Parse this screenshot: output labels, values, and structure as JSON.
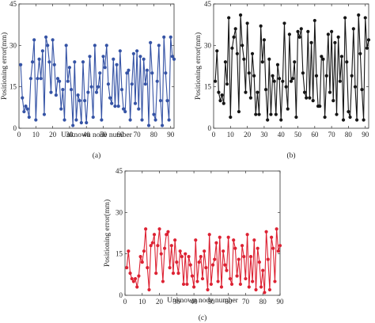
{
  "chart_data": [
    {
      "type": "line",
      "panel": "(a)",
      "xlabel": "Unknown node number",
      "ylabel": "Positioning error(mm)",
      "xlim": [
        0,
        92
      ],
      "ylim": [
        0,
        45
      ],
      "xticks": [
        0,
        10,
        20,
        30,
        40,
        50,
        60,
        70,
        80,
        90
      ],
      "yticks": [
        0,
        15,
        30,
        45
      ],
      "grid": false,
      "color": "#3553a5",
      "series": [
        {
          "x": [
            1,
            2,
            3,
            4,
            5,
            6,
            7,
            8,
            9,
            10,
            11,
            12,
            13,
            14,
            15,
            16,
            17,
            18,
            19,
            20,
            21,
            22,
            23,
            24,
            25,
            26,
            27,
            28,
            29,
            30,
            31,
            32,
            33,
            34,
            35,
            36,
            37,
            38,
            39,
            40,
            41,
            42,
            43,
            44,
            45,
            46,
            47,
            48,
            49,
            50,
            51,
            52,
            53,
            54,
            55,
            56,
            57,
            58,
            59,
            60,
            61,
            62,
            63,
            64,
            65,
            66,
            67,
            68,
            69,
            70,
            71,
            72,
            73,
            74,
            75,
            76,
            77,
            78,
            79,
            80,
            81,
            82,
            83,
            84,
            85,
            86,
            87,
            88,
            89,
            90,
            91,
            92
          ],
          "values": [
            23,
            11,
            6,
            8,
            7,
            4,
            18,
            24,
            32,
            3,
            18,
            25,
            18,
            28,
            5,
            33,
            30,
            24,
            13,
            32,
            23,
            12,
            18,
            17,
            7,
            14,
            3,
            30,
            17,
            22,
            14,
            1,
            24,
            3,
            12,
            10,
            2,
            24,
            10,
            2,
            13,
            26,
            15,
            4,
            30,
            13,
            15,
            20,
            3,
            26,
            22,
            30,
            16,
            11,
            9,
            25,
            8,
            23,
            8,
            28,
            14,
            7,
            6,
            20,
            21,
            3,
            16,
            27,
            9,
            28,
            7,
            26,
            3,
            25,
            16,
            21,
            1,
            31,
            20,
            5,
            3,
            17,
            30,
            10,
            1,
            33,
            20,
            10,
            3,
            33,
            26,
            25
          ]
        }
      ]
    },
    {
      "type": "line",
      "panel": "(b)",
      "xlabel": "",
      "ylabel": "Positioning error(mm)",
      "xlim": [
        0,
        92
      ],
      "ylim": [
        0,
        45
      ],
      "xticks": [
        0,
        10,
        20,
        30,
        40,
        50,
        60,
        70,
        80,
        90
      ],
      "yticks": [
        0,
        15,
        30,
        45
      ],
      "grid": false,
      "color": "#151515",
      "series": [
        {
          "x": [
            1,
            2,
            3,
            4,
            5,
            6,
            7,
            8,
            9,
            10,
            11,
            12,
            13,
            14,
            15,
            16,
            17,
            18,
            19,
            20,
            21,
            22,
            23,
            24,
            25,
            26,
            27,
            28,
            29,
            30,
            31,
            32,
            33,
            34,
            35,
            36,
            37,
            38,
            39,
            40,
            41,
            42,
            43,
            44,
            45,
            46,
            47,
            48,
            49,
            50,
            51,
            52,
            53,
            54,
            55,
            56,
            57,
            58,
            59,
            60,
            61,
            62,
            63,
            64,
            65,
            66,
            67,
            68,
            69,
            70,
            71,
            72,
            73,
            74,
            75,
            76,
            77,
            78,
            79,
            80,
            81,
            82,
            83,
            84,
            85,
            86,
            87,
            88,
            89,
            90,
            91,
            92
          ],
          "values": [
            17,
            28,
            13,
            10,
            12,
            9,
            24,
            16,
            40,
            4,
            29,
            33,
            36,
            27,
            6,
            41,
            30,
            25,
            13,
            38,
            20,
            11,
            27,
            19,
            5,
            13,
            5,
            37,
            24,
            32,
            14,
            3,
            25,
            5,
            19,
            17,
            5,
            23,
            18,
            3,
            17,
            38,
            15,
            7,
            34,
            17,
            18,
            24,
            4,
            35,
            33,
            36,
            20,
            13,
            11,
            35,
            11,
            31,
            10,
            39,
            19,
            8,
            8,
            26,
            25,
            4,
            19,
            34,
            13,
            35,
            10,
            31,
            5,
            33,
            17,
            26,
            3,
            40,
            24,
            6,
            4,
            19,
            36,
            15,
            3,
            41,
            27,
            14,
            3,
            40,
            29,
            32
          ]
        }
      ]
    },
    {
      "type": "line",
      "panel": "(c)",
      "xlabel": "Unknown node number",
      "ylabel": "Positioning error(mm)",
      "xlim": [
        0,
        90
      ],
      "ylim": [
        0,
        45
      ],
      "xticks": [
        0,
        10,
        20,
        30,
        40,
        50,
        60,
        70,
        80,
        90
      ],
      "yticks": [
        0,
        15,
        30,
        45
      ],
      "grid": false,
      "color": "#dd2233",
      "series": [
        {
          "x": [
            1,
            2,
            3,
            4,
            5,
            6,
            7,
            8,
            9,
            10,
            11,
            12,
            13,
            14,
            15,
            16,
            17,
            18,
            19,
            20,
            21,
            22,
            23,
            24,
            25,
            26,
            27,
            28,
            29,
            30,
            31,
            32,
            33,
            34,
            35,
            36,
            37,
            38,
            39,
            40,
            41,
            42,
            43,
            44,
            45,
            46,
            47,
            48,
            49,
            50,
            51,
            52,
            53,
            54,
            55,
            56,
            57,
            58,
            59,
            60,
            61,
            62,
            63,
            64,
            65,
            66,
            67,
            68,
            69,
            70,
            71,
            72,
            73,
            74,
            75,
            76,
            77,
            78,
            79,
            80,
            81,
            82,
            83,
            84,
            85,
            86,
            87,
            88,
            89,
            90
          ],
          "values": [
            10,
            16,
            8,
            6,
            5,
            6,
            3,
            7,
            14,
            12,
            16,
            24,
            10,
            2,
            18,
            19,
            22,
            8,
            18,
            24,
            15,
            5,
            17,
            22,
            23,
            10,
            18,
            8,
            20,
            12,
            8,
            16,
            14,
            4,
            15,
            4,
            14,
            11,
            7,
            3,
            20,
            5,
            12,
            14,
            6,
            16,
            10,
            2,
            22,
            4,
            11,
            13,
            19,
            5,
            21,
            3,
            16,
            11,
            9,
            21,
            6,
            4,
            20,
            17,
            7,
            13,
            4,
            18,
            14,
            6,
            22,
            3,
            14,
            5,
            20,
            2,
            17,
            12,
            3,
            9,
            1,
            23,
            13,
            2,
            21,
            17,
            5,
            24,
            16,
            18
          ]
        }
      ]
    }
  ]
}
